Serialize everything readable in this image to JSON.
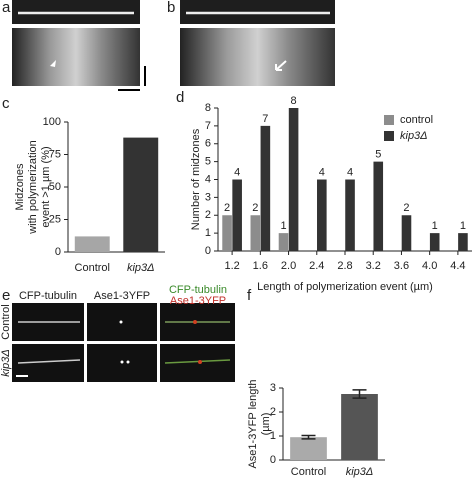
{
  "panels": {
    "a": "a",
    "b": "b",
    "c": "c",
    "d": "d",
    "e": "e",
    "f": "f"
  },
  "panel_e": {
    "columns": [
      "CFP-tubulin",
      "Ase1-3YFP",
      "CFP-tubulin",
      "Ase1-3YFP"
    ],
    "rows": [
      "Control",
      "kip3Δ"
    ]
  },
  "chart_data": [
    {
      "type": "bar",
      "ylabel": [
        "Midzones",
        "with polymerization",
        "event >1 µm (%)"
      ],
      "categories": [
        "Control",
        "kip3Δ"
      ],
      "values": [
        12,
        88
      ],
      "colors": [
        "#a6a6a6",
        "#333333"
      ],
      "ylim": [
        0,
        100
      ],
      "yticks": [
        0,
        25,
        50,
        75,
        100
      ]
    },
    {
      "type": "grouped-bar",
      "ylabel": [
        "Number of midzones"
      ],
      "xlabel": "Length of polymerization event (µm)",
      "categories": [
        "1.2",
        "1.6",
        "2.0",
        "2.4",
        "2.8",
        "3.2",
        "3.6",
        "4.0",
        "4.4"
      ],
      "series": [
        {
          "name": "control",
          "color": "#8c8c8c",
          "values": [
            2,
            2,
            1,
            null,
            null,
            null,
            null,
            null,
            null
          ]
        },
        {
          "name": "kip3Δ",
          "color": "#333333",
          "values": [
            4,
            7,
            8,
            4,
            4,
            5,
            2,
            1,
            1
          ]
        }
      ],
      "ylim": [
        0,
        8
      ],
      "yticks": [
        0,
        1,
        2,
        3,
        4,
        5,
        6,
        7,
        8
      ],
      "legend": "upper right"
    },
    {
      "type": "bar",
      "ylabel": [
        "Ase1-3YFP length",
        "(µm)"
      ],
      "categories": [
        "Control",
        "kip3Δ"
      ],
      "values": [
        0.95,
        2.75
      ],
      "errors": [
        0.07,
        0.17
      ],
      "colors": [
        "#aaaaaa",
        "#555555"
      ],
      "ylim": [
        0,
        3
      ],
      "yticks": [
        0,
        1,
        2,
        3
      ]
    }
  ]
}
